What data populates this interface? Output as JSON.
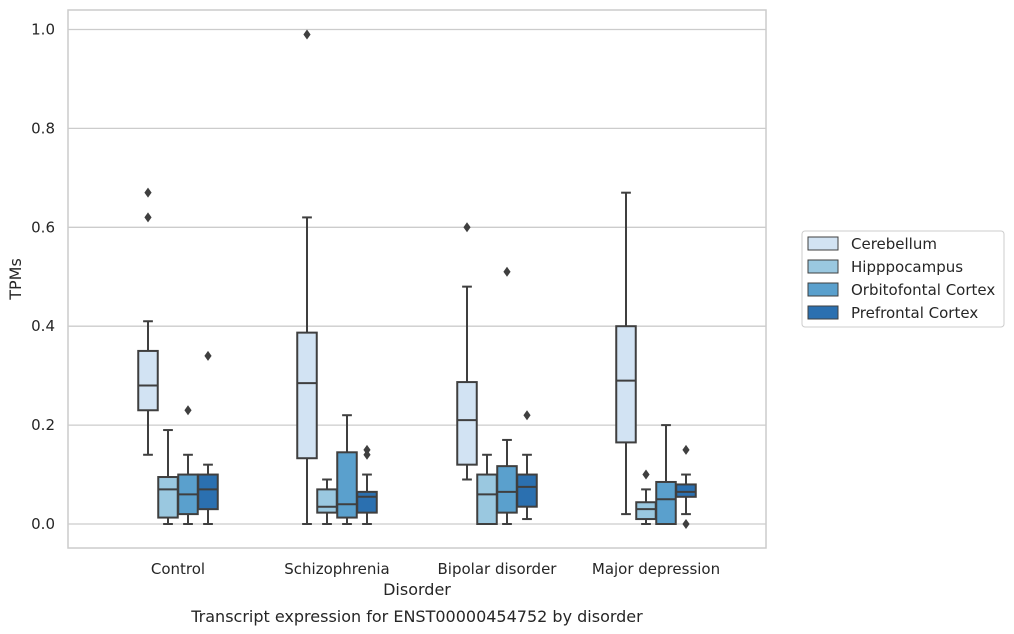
{
  "chart_data": {
    "type": "box",
    "xlabel": "Disorder",
    "ylabel": "TPMs",
    "caption": "Transcript expression for ENST00000454752 by disorder",
    "ylim": [
      -0.05,
      1.04
    ],
    "yticks": [
      "0.0",
      "0.2",
      "0.4",
      "0.6",
      "0.8",
      "1.0"
    ],
    "ytick_values": [
      0.0,
      0.2,
      0.4,
      0.6,
      0.8,
      1.0
    ],
    "grid": "horizontal",
    "legend_position": "right",
    "categories": [
      "Control",
      "Schizophrenia",
      "Bipolar disorder",
      "Major depression"
    ],
    "series": [
      {
        "name": "Cerebellum",
        "color": "#d2e3f3",
        "boxes": [
          {
            "whislo": 0.14,
            "q1": 0.23,
            "med": 0.28,
            "q3": 0.35,
            "whishi": 0.41,
            "fliers": [
              0.62,
              0.67
            ]
          },
          {
            "whislo": 0.0,
            "q1": 0.133,
            "med": 0.285,
            "q3": 0.387,
            "whishi": 0.62,
            "fliers": [
              0.99
            ]
          },
          {
            "whislo": 0.09,
            "q1": 0.12,
            "med": 0.21,
            "q3": 0.287,
            "whishi": 0.48,
            "fliers": [
              0.6
            ]
          },
          {
            "whislo": 0.02,
            "q1": 0.165,
            "med": 0.29,
            "q3": 0.4,
            "whishi": 0.67,
            "fliers": []
          }
        ]
      },
      {
        "name": "Hipppocampus",
        "color": "#9ac8e0",
        "boxes": [
          {
            "whislo": 0.0,
            "q1": 0.013,
            "med": 0.07,
            "q3": 0.095,
            "whishi": 0.19,
            "fliers": []
          },
          {
            "whislo": 0.0,
            "q1": 0.023,
            "med": 0.035,
            "q3": 0.07,
            "whishi": 0.09,
            "fliers": []
          },
          {
            "whislo": 0.0,
            "q1": 0.0,
            "med": 0.06,
            "q3": 0.1,
            "whishi": 0.14,
            "fliers": []
          },
          {
            "whislo": 0.0,
            "q1": 0.01,
            "med": 0.03,
            "q3": 0.044,
            "whishi": 0.07,
            "fliers": [
              0.1
            ]
          }
        ]
      },
      {
        "name": "Orbitofontal Cortex",
        "color": "#5aa0cd",
        "boxes": [
          {
            "whislo": 0.0,
            "q1": 0.02,
            "med": 0.06,
            "q3": 0.1,
            "whishi": 0.14,
            "fliers": [
              0.23
            ]
          },
          {
            "whislo": 0.0,
            "q1": 0.013,
            "med": 0.04,
            "q3": 0.145,
            "whishi": 0.22,
            "fliers": []
          },
          {
            "whislo": 0.0,
            "q1": 0.023,
            "med": 0.065,
            "q3": 0.117,
            "whishi": 0.17,
            "fliers": [
              0.51
            ]
          },
          {
            "whislo": 0.0,
            "q1": 0.0,
            "med": 0.05,
            "q3": 0.085,
            "whishi": 0.2,
            "fliers": []
          }
        ]
      },
      {
        "name": "Prefrontal Cortex",
        "color": "#2b70b0",
        "boxes": [
          {
            "whislo": 0.0,
            "q1": 0.03,
            "med": 0.07,
            "q3": 0.1,
            "whishi": 0.12,
            "fliers": [
              0.34
            ]
          },
          {
            "whislo": 0.0,
            "q1": 0.023,
            "med": 0.055,
            "q3": 0.065,
            "whishi": 0.1,
            "fliers": [
              0.14,
              0.15
            ]
          },
          {
            "whislo": 0.01,
            "q1": 0.035,
            "med": 0.075,
            "q3": 0.1,
            "whishi": 0.14,
            "fliers": [
              0.22
            ]
          },
          {
            "whislo": 0.02,
            "q1": 0.055,
            "med": 0.065,
            "q3": 0.08,
            "whishi": 0.1,
            "fliers": [
              0.0,
              0.15
            ]
          }
        ]
      }
    ]
  }
}
